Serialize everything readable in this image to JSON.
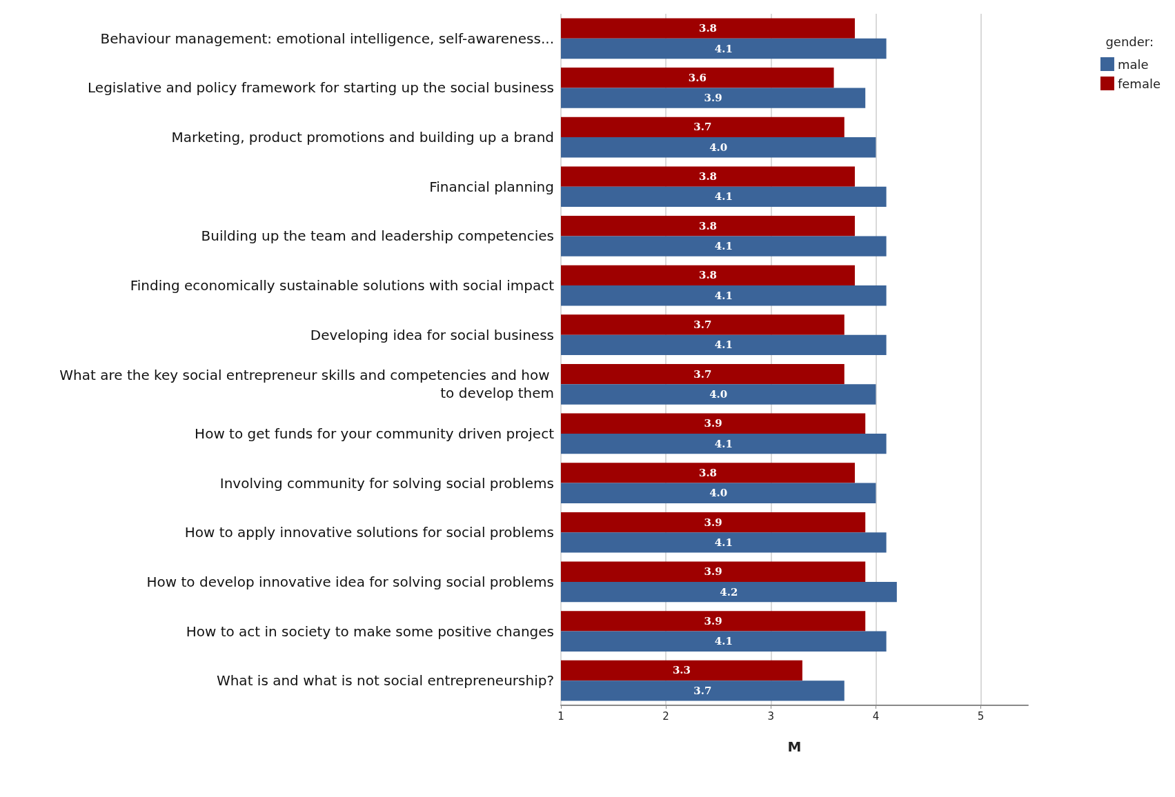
{
  "chart_data": {
    "type": "bar",
    "orientation": "horizontal",
    "xlabel": "M",
    "legend_title": "gender:",
    "legend": "top right",
    "grid": "x",
    "categories": [
      "Behaviour management: emotional intelligence, self-awareness...",
      "Legislative and policy framework for starting up the social business",
      "Marketing, product promotions and building up a brand",
      "Financial planning",
      "Building up the team and leadership competencies",
      "Finding economically sustainable solutions with social impact",
      "Developing idea for social business",
      "What are the key social entrepreneur skills and competencies and how to develop them",
      "How to get funds for your community driven project",
      "Involving community for solving social problems",
      "How to apply innovative solutions for social problems",
      "How to develop innovative idea for solving social problems",
      "How to act in society to make some positive changes",
      "What is and what is not social entrepreneurship?"
    ],
    "series": [
      {
        "name": "male",
        "color": "#3b6499",
        "values": [
          4.1,
          3.9,
          4.0,
          4.1,
          4.1,
          4.1,
          4.1,
          4.0,
          4.1,
          4.0,
          4.1,
          4.2,
          4.1,
          3.7
        ],
        "value_labels": [
          "4.1",
          "3.9",
          "4.0",
          "4.1",
          "4.1",
          "4.1",
          "4.1",
          "4.0",
          "4.1",
          "4.0",
          "4.1",
          "4.2",
          "4.1",
          "3.7"
        ]
      },
      {
        "name": "female",
        "color": "#9e0000",
        "values": [
          3.8,
          3.6,
          3.7,
          3.8,
          3.8,
          3.8,
          3.7,
          3.7,
          3.9,
          3.8,
          3.9,
          3.9,
          3.9,
          3.3
        ],
        "value_labels": [
          "3.8",
          "3.6",
          "3.7",
          "3.8",
          "3.8",
          "3.8",
          "3.7",
          "3.7",
          "3.9",
          "3.8",
          "3.9",
          "3.9",
          "3.9",
          "3.3"
        ]
      }
    ],
    "xlim": [
      1,
      5.45
    ],
    "xticks": [
      1,
      2,
      3,
      4,
      5
    ]
  }
}
